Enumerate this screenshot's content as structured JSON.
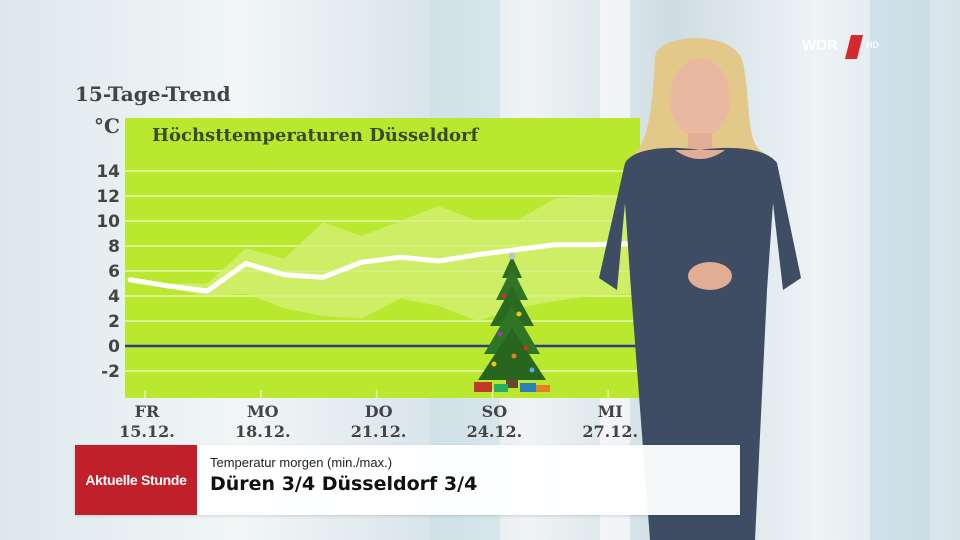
{
  "header": {
    "title": "15-Tage-Trend",
    "unit": "°C"
  },
  "broadcaster": {
    "logo_text": "WDR",
    "hd_text": "HD"
  },
  "lower_third": {
    "brand": "Aktuelle Stunde",
    "label": "Temperatur morgen (min./max.)",
    "value": "Düren 3/4   Düsseldorf 3/4"
  },
  "colors": {
    "plot_background": "#b9e82e",
    "grid": "#e8f6b0",
    "band": "#d6f07a",
    "line": "#ffffff",
    "zero_line": "#2a3d8f",
    "brand_red": "#c0202a"
  },
  "chart_data": {
    "type": "line",
    "title": "Höchsttemperaturen Düsseldorf",
    "ylabel": "°C",
    "ylim": [
      -3.5,
      15
    ],
    "yticks": [
      14,
      12,
      10,
      8,
      6,
      4,
      2,
      0,
      -2
    ],
    "xticks": [
      {
        "day": "FR",
        "date": "15.12."
      },
      {
        "day": "MO",
        "date": "18.12."
      },
      {
        "day": "DO",
        "date": "21.12."
      },
      {
        "day": "SO",
        "date": "24.12."
      },
      {
        "day": "MI",
        "date": "27.12."
      }
    ],
    "x": [
      "15.12.",
      "16.12.",
      "17.12.",
      "18.12.",
      "19.12.",
      "20.12.",
      "21.12.",
      "22.12.",
      "23.12.",
      "24.12.",
      "25.12.",
      "26.12.",
      "27.12.",
      "28.12."
    ],
    "series": [
      {
        "values": [
          5.3,
          4.8,
          4.4,
          6.6,
          5.7,
          5.5,
          6.7,
          7.1,
          6.8,
          7.3,
          7.7,
          8.1,
          8.1,
          8.2
        ]
      }
    ],
    "band_upper": [
      5.3,
      5.0,
      5.0,
      7.8,
      7.0,
      9.9,
      8.8,
      10.0,
      11.2,
      10.0,
      10.0,
      11.8,
      12.0,
      12.1
    ],
    "band_lower": [
      5.3,
      4.6,
      4.0,
      4.2,
      3.0,
      2.4,
      2.2,
      3.8,
      3.2,
      2.0,
      3.0,
      3.6,
      4.0,
      4.2
    ],
    "zero_line": 0,
    "grid": true
  }
}
